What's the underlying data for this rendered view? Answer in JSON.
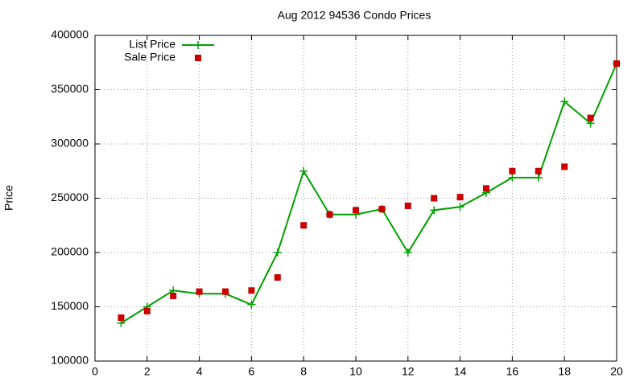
{
  "chart_data": {
    "type": "line",
    "title": "Aug 2012 94536 Condo Prices",
    "y_label": "Price",
    "x": [
      1,
      2,
      3,
      4,
      5,
      6,
      7,
      8,
      9,
      10,
      11,
      12,
      13,
      14,
      15,
      16,
      17,
      18,
      19,
      20
    ],
    "series": [
      {
        "name": "List Price",
        "color": "#00a000",
        "style": "linespoints",
        "values": [
          135000,
          150000,
          165000,
          162000,
          162000,
          152000,
          200000,
          275000,
          235000,
          235000,
          240000,
          200000,
          239000,
          242000,
          255000,
          269000,
          269000,
          339000,
          319000,
          374000
        ]
      },
      {
        "name": "Sale Price",
        "color": "#cc0000",
        "style": "points",
        "values": [
          140000,
          146000,
          160000,
          164000,
          164000,
          165000,
          177000,
          225000,
          235000,
          239000,
          240000,
          243000,
          250000,
          251000,
          259000,
          275000,
          275000,
          279000,
          324000,
          374000
        ]
      }
    ],
    "xlim": [
      0,
      20
    ],
    "xticks": [
      0,
      2,
      4,
      6,
      8,
      10,
      12,
      14,
      16,
      18,
      20
    ],
    "ylim": [
      100000,
      400000
    ],
    "yticks": [
      100000,
      150000,
      200000,
      250000,
      300000,
      350000,
      400000
    ],
    "grid": true,
    "legend": "top-left"
  }
}
